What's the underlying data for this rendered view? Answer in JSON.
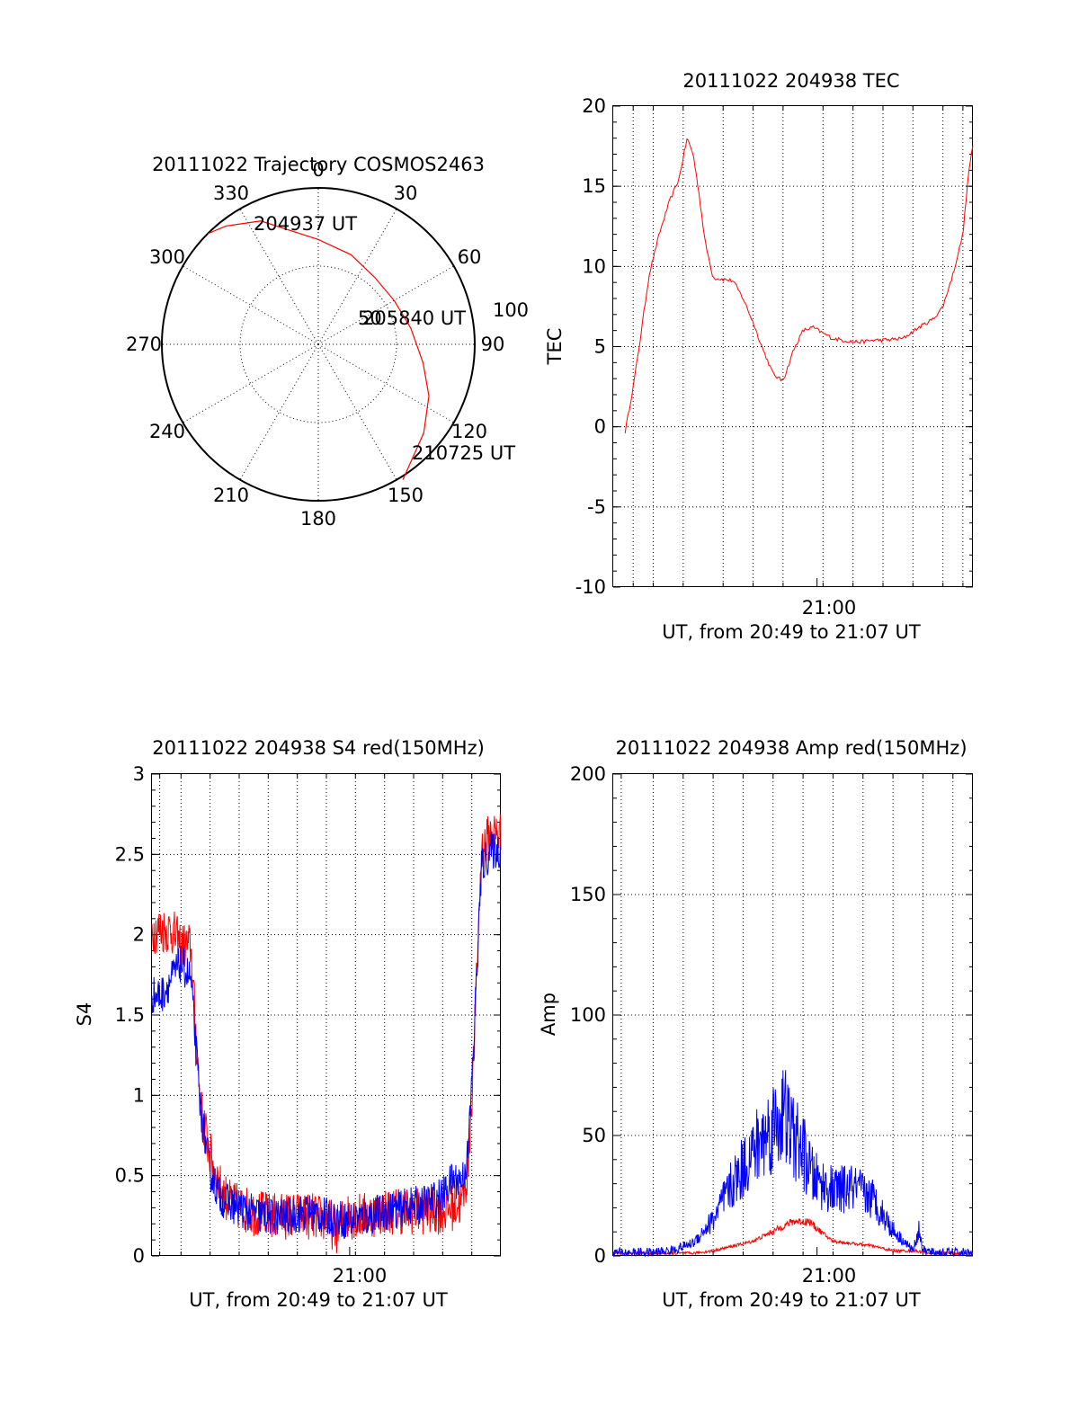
{
  "chart_data": [
    {
      "type": "polar",
      "title": "20111022 Trajectory COSMOS2463",
      "angle_labels": [
        "0",
        "30",
        "60",
        "90",
        "120",
        "150",
        "180",
        "210",
        "240",
        "270",
        "300",
        "330"
      ],
      "ring_labels": [
        "50",
        "100"
      ],
      "rlim": [
        0,
        100
      ],
      "grid": true,
      "trajectory": {
        "color": "#ff0000",
        "azimuth": [
          -45,
          -38,
          -25,
          0,
          20,
          40,
          60,
          80,
          100,
          115,
          130,
          148
        ],
        "zenith": [
          100,
          96,
          87,
          67,
          61,
          56,
          56,
          60,
          68,
          78,
          88,
          102
        ]
      },
      "annotations": [
        "204937 UT",
        "205840 UT",
        "210725 UT"
      ]
    },
    {
      "type": "line",
      "title": "20111022 204938 TEC",
      "xlabel": "UT, from 20:49 to 21:07 UT",
      "ylabel": "TEC",
      "x_tick_labels": [
        "21:00"
      ],
      "y_tick_labels": [
        "-10",
        "-5",
        "0",
        "5",
        "10",
        "15",
        "20"
      ],
      "ylim": [
        -10,
        20
      ],
      "xlim_minutes_after_2049": [
        0,
        18
      ],
      "grid": true,
      "series": [
        {
          "color": "#ff0000",
          "x": [
            0.6,
            1.0,
            1.3,
            1.8,
            2.3,
            2.8,
            3.3,
            3.7,
            4.0,
            4.3,
            4.6,
            5.0,
            5.5,
            6.0,
            6.5,
            7.0,
            7.5,
            8.0,
            8.4,
            8.6,
            9.0,
            9.5,
            10.0,
            10.4,
            11.0,
            12.0,
            12.5,
            13.0,
            13.5,
            14.5,
            15.3,
            16.0,
            16.5,
            17.0,
            17.5,
            17.8,
            18.0
          ],
          "y": [
            -0.3,
            2.5,
            5.0,
            9.5,
            12.0,
            14.0,
            15.5,
            18.0,
            17.0,
            14.5,
            11.5,
            9.3,
            9.2,
            9.1,
            8.0,
            6.5,
            4.8,
            3.3,
            2.9,
            3.2,
            4.7,
            6.0,
            6.2,
            5.9,
            5.5,
            5.3,
            5.3,
            5.4,
            5.4,
            5.5,
            6.2,
            6.7,
            7.5,
            9.5,
            12.0,
            16.0,
            17.5
          ]
        }
      ]
    },
    {
      "type": "line",
      "title": "20111022 204938 S4 red(150MHz)",
      "xlabel": "UT, from 20:49 to 21:07 UT",
      "ylabel": "S4",
      "x_tick_labels": [
        "21:00"
      ],
      "y_tick_labels": [
        "0",
        "0.5",
        "1",
        "1.5",
        "2",
        "2.5",
        "3"
      ],
      "ylim": [
        0,
        3
      ],
      "xlim_minutes_after_2049": [
        0,
        18
      ],
      "grid": true,
      "series": [
        {
          "color": "#ff0000",
          "x": [
            0.0,
            0.5,
            1.0,
            1.5,
            2.0,
            2.5,
            3.0,
            3.5,
            4.0,
            5.0,
            6.0,
            7.0,
            8.0,
            9.0,
            9.5,
            10.0,
            11.0,
            12.0,
            13.0,
            14.0,
            15.0,
            16.0,
            16.3,
            16.6,
            17.0,
            17.5,
            18.0
          ],
          "y": [
            2.0,
            2.0,
            2.0,
            1.9,
            1.9,
            0.9,
            0.6,
            0.4,
            0.3,
            0.25,
            0.22,
            0.22,
            0.22,
            0.2,
            0.13,
            0.22,
            0.22,
            0.25,
            0.25,
            0.25,
            0.25,
            0.3,
            0.5,
            1.2,
            2.5,
            2.6,
            2.6
          ],
          "noise": 0.15
        },
        {
          "color": "#0000ff",
          "x": [
            0.0,
            0.5,
            1.0,
            1.5,
            2.0,
            2.5,
            3.0,
            3.5,
            4.0,
            5.0,
            6.0,
            7.0,
            8.0,
            9.0,
            10.0,
            11.0,
            12.0,
            13.0,
            14.0,
            15.0,
            15.5,
            16.0,
            16.3,
            16.6,
            17.0,
            17.5,
            18.0
          ],
          "y": [
            1.6,
            1.6,
            1.7,
            1.8,
            1.7,
            0.9,
            0.5,
            0.35,
            0.3,
            0.25,
            0.22,
            0.22,
            0.25,
            0.22,
            0.2,
            0.22,
            0.25,
            0.28,
            0.3,
            0.35,
            0.45,
            0.45,
            0.6,
            1.3,
            2.4,
            2.5,
            2.5
          ],
          "noise": 0.12
        }
      ]
    },
    {
      "type": "line",
      "title": "20111022 204938 Amp red(150MHz)",
      "xlabel": "UT, from 20:49 to 21:07 UT",
      "ylabel": "Amp",
      "x_tick_labels": [
        "21:00"
      ],
      "y_tick_labels": [
        "0",
        "50",
        "100",
        "150",
        "200"
      ],
      "ylim": [
        0,
        200
      ],
      "xlim_minutes_after_2049": [
        0,
        18
      ],
      "grid": true,
      "series": [
        {
          "color": "#ff0000",
          "x": [
            0,
            3.0,
            4.0,
            5.0,
            6.0,
            7.0,
            8.0,
            9.0,
            9.8,
            10.5,
            11.0,
            12.0,
            13.0,
            14.0,
            15.0,
            16.0,
            18.0
          ],
          "y": [
            1,
            1,
            1,
            2,
            4,
            6,
            10,
            14,
            14,
            9,
            6,
            5,
            4,
            2,
            2,
            1,
            1
          ],
          "noise": 3
        },
        {
          "color": "#0000ff",
          "x": [
            0,
            2.0,
            3.0,
            4.0,
            5.0,
            6.0,
            7.0,
            8.0,
            8.5,
            9.0,
            9.5,
            10.0,
            11.0,
            12.0,
            12.5,
            13.0,
            14.0,
            14.5,
            15.0,
            15.3,
            15.5,
            16.0,
            18.0
          ],
          "y": [
            1,
            1,
            2,
            5,
            14,
            28,
            40,
            50,
            55,
            46,
            40,
            30,
            25,
            26,
            24,
            22,
            10,
            6,
            2,
            10,
            2,
            1,
            1
          ],
          "noise": 10
        }
      ]
    }
  ]
}
